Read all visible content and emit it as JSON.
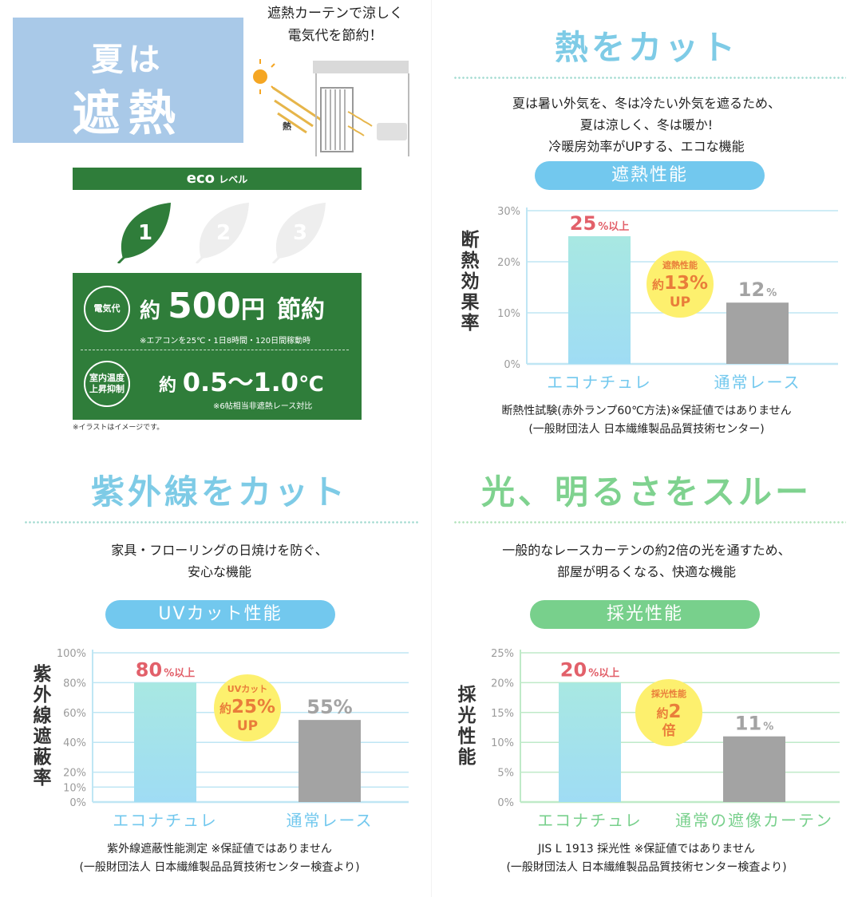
{
  "season": {
    "small": "夏は",
    "big": "遮熱"
  },
  "illustration": {
    "caption_line1": "遮熱カーテンで涼しく",
    "caption_line2": "電気代を節約！",
    "heat_label": "熱",
    "note": "※イラストはイメージです。"
  },
  "eco": {
    "header_eco": "eco",
    "header_level": "レベル",
    "levels": [
      "1",
      "2",
      "3"
    ],
    "active_level": 1,
    "row1": {
      "badge": "電気代",
      "prefix": "約",
      "value": "500",
      "unit": "円",
      "suffix": "節約",
      "note": "※エアコンを25℃・1日8時間・120日間稼動時"
    },
    "row2": {
      "badge_line1": "室内温度",
      "badge_line2": "上昇抑制",
      "prefix": "約",
      "value": "0.5〜1.0",
      "unit": "℃",
      "note": "※6帖相当非遮熱レース対比"
    }
  },
  "sections": {
    "heat": {
      "title": "熱をカット",
      "desc_line1": "夏は暑い外気を、冬は冷たい外気を遮るため、",
      "desc_line2": "夏は涼しく、冬は暖か!",
      "desc_line3": "冷暖房効率がUPする、エコな機能",
      "pill": "遮熱性能",
      "source_line1": "断熱性試験(赤外ランプ60℃方法)※保証値ではありません",
      "source_line2": "(一般財団法人 日本繊維製品品質技術センター)"
    },
    "uv": {
      "title": "紫外線をカット",
      "desc_line1": "家具・フローリングの日焼けを防ぐ、",
      "desc_line2": "安心な機能",
      "pill": "UVカット性能",
      "source_line1": "紫外線遮蔽性能測定 ※保証値ではありません",
      "source_line2": "(一般財団法人 日本繊維製品品質技術センター検査より)"
    },
    "light": {
      "title": "光、明るさをスルー",
      "desc_line1": "一般的なレースカーテンの約2倍の光を通すため、",
      "desc_line2": "部屋が明るくなる、快適な機能",
      "pill": "採光性能",
      "source_line1": "JIS L 1913 採光性 ※保証値ではありません",
      "source_line2": "(一般財団法人 日本繊維製品品質技術センター検査より)"
    }
  },
  "colors": {
    "heat_title": "#7ecbe6",
    "uv_title": "#7ecbe6",
    "light_title": "#7fd28f",
    "pill_blue": "#72c8ee",
    "pill_green": "#78d08c",
    "bar_main_top": "#a8e8e2",
    "bar_main_bottom": "#9fdcf4",
    "bar_gray": "#a3a3a3",
    "value_red": "#e2606a",
    "value_gray": "#a3a3a3",
    "bubble": "#fdf06e",
    "bubble_text": "#e97d3a",
    "axis_blue": "#bfe6f4",
    "axis_green": "#bfeac8",
    "eco_green": "#2f7d3a"
  },
  "chart_data": [
    {
      "type": "bar",
      "categories": [
        "エコナチュレ",
        "通常レース"
      ],
      "values": [
        25,
        12
      ],
      "value_labels": [
        {
          "num": "25",
          "suffix": "%以上"
        },
        {
          "num": "12",
          "suffix": "%"
        }
      ],
      "ylabel": "断熱効果率",
      "yticks": [
        "0%",
        "10%",
        "20%",
        "30%"
      ],
      "ylim": [
        0,
        30
      ],
      "callout": {
        "line1": "遮熱性能",
        "num": "13%",
        "prefix": "約",
        "line3": "UP"
      },
      "grid": true
    },
    {
      "type": "bar",
      "categories": [
        "エコナチュレ",
        "通常レース"
      ],
      "values": [
        80,
        55
      ],
      "value_labels": [
        {
          "num": "80",
          "suffix": "%以上"
        },
        {
          "num": "55%",
          "suffix": ""
        }
      ],
      "ylabel": "紫外線遮蔽率",
      "yticks": [
        "0%",
        "10%",
        "20%",
        "40%",
        "60%",
        "80%",
        "100%"
      ],
      "ylim": [
        0,
        100
      ],
      "callout": {
        "line1": "UVカット",
        "num": "25%",
        "prefix": "約",
        "line3": "UP"
      },
      "grid": true
    },
    {
      "type": "bar",
      "categories": [
        "エコナチュレ",
        "通常の遮像カーテン"
      ],
      "values": [
        20,
        11
      ],
      "value_labels": [
        {
          "num": "20",
          "suffix": "%以上"
        },
        {
          "num": "11",
          "suffix": "%"
        }
      ],
      "ylabel": "採光性能",
      "yticks": [
        "0%",
        "5%",
        "10%",
        "15%",
        "20%",
        "25%"
      ],
      "ylim": [
        0,
        25
      ],
      "callout": {
        "line1": "採光性能",
        "num": "2",
        "prefix": "約",
        "line3": "倍"
      },
      "grid": true
    }
  ]
}
